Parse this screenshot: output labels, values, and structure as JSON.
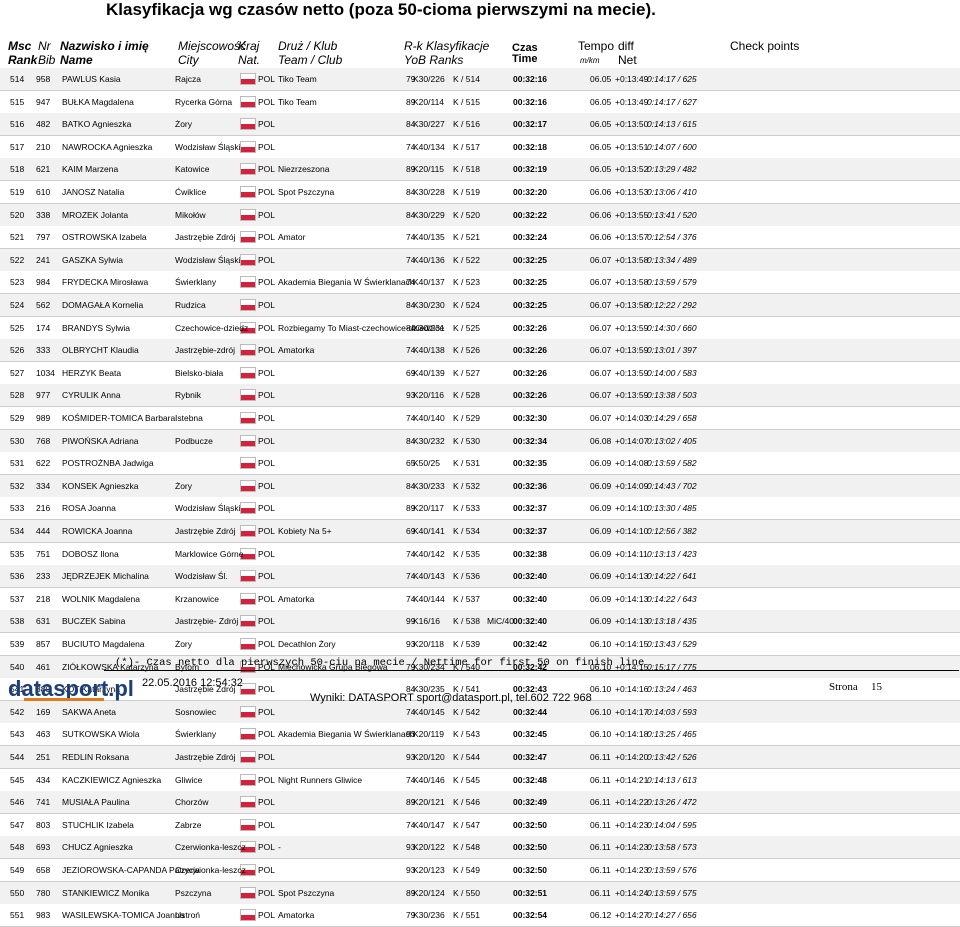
{
  "header": {
    "title": "Klasyfikacja wg czasów netto (poza 50-cioma pierwszymi na mecie).",
    "cols1": [
      "Msc",
      "Nr",
      "Nazwisko i imię",
      "Miejscowość",
      "Kraj",
      "Druż / Klub",
      "R-k Klasyfikacje",
      "Czas",
      "Tempo",
      "diff",
      "Check points"
    ],
    "cols2": [
      "Rank",
      "Bib",
      "Name",
      "City",
      "Nat.",
      "Team / Club",
      "YoB Ranks",
      "Time",
      "m/km",
      "Net"
    ]
  },
  "table": {
    "rows": [
      {
        "msc": "514",
        "nr": "958",
        "name": "PAWLUS Kasia",
        "city": "Rajcza",
        "nat": "POL",
        "club": "Tiko Team",
        "yob": "79",
        "cat": "K30/226",
        "rank": "K / 514",
        "time": "00:32:16",
        "pace": "06.05",
        "diff": "+0:13:49",
        "net": "0:14:17 / 625"
      },
      {
        "msc": "515",
        "nr": "947",
        "name": "BUŁKA Magdalena",
        "city": "Rycerka Górna",
        "nat": "POL",
        "club": "Tiko Team",
        "yob": "89",
        "cat": "K20/114",
        "rank": "K / 515",
        "time": "00:32:16",
        "pace": "06.05",
        "diff": "+0:13:49",
        "net": "0:14:17 / 627"
      },
      {
        "msc": "516",
        "nr": "482",
        "name": "BATKO Agnieszka",
        "city": "Żory",
        "nat": "POL",
        "yob": "84",
        "cat": "K30/227",
        "rank": "K / 516",
        "time": "00:32:17",
        "pace": "06.05",
        "diff": "+0:13:50",
        "net": "0:14:13 / 615"
      },
      {
        "msc": "517",
        "nr": "210",
        "name": "NAWROCKA Agnieszka",
        "city": "Wodzisław Śląski",
        "nat": "POL",
        "yob": "74",
        "cat": "K40/134",
        "rank": "K / 517",
        "time": "00:32:18",
        "pace": "06.05",
        "diff": "+0:13:51",
        "net": "0:14:07 / 600"
      },
      {
        "msc": "518",
        "nr": "621",
        "name": "KAIM Marzena",
        "city": "Katowice",
        "nat": "POL",
        "club": "Niezrzeszona",
        "yob": "89",
        "cat": "K20/115",
        "rank": "K / 518",
        "time": "00:32:19",
        "pace": "06.05",
        "diff": "+0:13:52",
        "net": "0:13:29 / 482"
      },
      {
        "msc": "519",
        "nr": "610",
        "name": "JANOSZ Natalia",
        "city": "Ćwiklice",
        "nat": "POL",
        "club": "Spot Pszczyna",
        "yob": "84",
        "cat": "K30/228",
        "rank": "K / 519",
        "time": "00:32:20",
        "pace": "06.06",
        "diff": "+0:13:53",
        "net": "0:13:06 / 410"
      },
      {
        "msc": "520",
        "nr": "338",
        "name": "MROZEK Jolanta",
        "city": "Mikołów",
        "nat": "POL",
        "yob": "84",
        "cat": "K30/229",
        "rank": "K / 520",
        "time": "00:32:22",
        "pace": "06.06",
        "diff": "+0:13:55",
        "net": "0:13:41 / 520"
      },
      {
        "msc": "521",
        "nr": "797",
        "name": "OSTROWSKA Izabela",
        "city": "Jastrzębie Zdrój",
        "nat": "POL",
        "club": "Amator",
        "yob": "74",
        "cat": "K40/135",
        "rank": "K / 521",
        "time": "00:32:24",
        "pace": "06.06",
        "diff": "+0:13:57",
        "net": "0:12:54 / 376"
      },
      {
        "msc": "522",
        "nr": "241",
        "name": "GASZKA Sylwia",
        "city": "Wodzisław Śląski",
        "nat": "POL",
        "yob": "74",
        "cat": "K40/136",
        "rank": "K / 522",
        "time": "00:32:25",
        "pace": "06.07",
        "diff": "+0:13:58",
        "net": "0:13:34 / 489"
      },
      {
        "msc": "523",
        "nr": "984",
        "name": "FRYDECKA Mirosława",
        "city": "Świerklany",
        "nat": "POL",
        "club": "Akademia Biegania W Świerklanach",
        "yob": "74",
        "cat": "K40/137",
        "rank": "K / 523",
        "time": "00:32:25",
        "pace": "06.07",
        "diff": "+0:13:58",
        "net": "0:13:59 / 579"
      },
      {
        "msc": "524",
        "nr": "562",
        "name": "DOMAGAŁA Kornelia",
        "city": "Rudzica",
        "nat": "POL",
        "yob": "84",
        "cat": "K30/230",
        "rank": "K / 524",
        "time": "00:32:25",
        "pace": "06.07",
        "diff": "+0:13:58",
        "net": "0:12:22 / 292"
      },
      {
        "msc": "525",
        "nr": "174",
        "name": "BRANDYS Sylwia",
        "city": "Czechowice-dziedz",
        "nat": "POL",
        "club": "Rozbiegamy To Miast-czechowice-dziedzice",
        "yob": "84",
        "cat": "K30/231",
        "rank": "K / 525",
        "time": "00:32:26",
        "pace": "06.07",
        "diff": "+0:13:59",
        "net": "0:14:30 / 660"
      },
      {
        "msc": "526",
        "nr": "333",
        "name": "OLBRYCHT Klaudia",
        "city": "Jastrzębie-zdrój",
        "nat": "POL",
        "club": "Amatorka",
        "yob": "74",
        "cat": "K40/138",
        "rank": "K / 526",
        "time": "00:32:26",
        "pace": "06.07",
        "diff": "+0:13:59",
        "net": "0:13:01 / 397"
      },
      {
        "msc": "527",
        "nr": "1034",
        "name": "HERZYK Beata",
        "city": "Bielsko-biała",
        "nat": "POL",
        "yob": "69",
        "cat": "K40/139",
        "rank": "K / 527",
        "time": "00:32:26",
        "pace": "06.07",
        "diff": "+0:13:59",
        "net": "0:14:00 / 583"
      },
      {
        "msc": "528",
        "nr": "977",
        "name": "CYRULIK Anna",
        "city": "Rybnik",
        "nat": "POL",
        "yob": "93",
        "cat": "K20/116",
        "rank": "K / 528",
        "time": "00:32:26",
        "pace": "06.07",
        "diff": "+0:13:59",
        "net": "0:13:38 / 503"
      },
      {
        "msc": "529",
        "nr": "989",
        "name": "KOŚMIDER-TOMICA Barbara",
        "city": "Istebna",
        "nat": "POL",
        "yob": "74",
        "cat": "K40/140",
        "rank": "K / 529",
        "time": "00:32:30",
        "pace": "06.07",
        "diff": "+0:14:03",
        "net": "0:14:29 / 658"
      },
      {
        "msc": "530",
        "nr": "768",
        "name": "PIWOŃSKA Adriana",
        "city": "Podbucze",
        "nat": "POL",
        "yob": "84",
        "cat": "K30/232",
        "rank": "K / 530",
        "time": "00:32:34",
        "pace": "06.08",
        "diff": "+0:14:07",
        "net": "0:13:02 / 405"
      },
      {
        "msc": "531",
        "nr": "622",
        "name": "POSTROŻNBA Jadwiga",
        "nat": "POL",
        "yob": "65",
        "cat": "K50/25",
        "rank": "K / 531",
        "time": "00:32:35",
        "pace": "06.09",
        "diff": "+0:14:08",
        "net": "0:13:59 / 582"
      },
      {
        "msc": "532",
        "nr": "334",
        "name": "KONSEK Agnieszka",
        "city": "Żory",
        "nat": "POL",
        "yob": "84",
        "cat": "K30/233",
        "rank": "K / 532",
        "time": "00:32:36",
        "pace": "06.09",
        "diff": "+0:14:09",
        "net": "0:14:43 / 702"
      },
      {
        "msc": "533",
        "nr": "216",
        "name": "ROSA Joanna",
        "city": "Wodzisław Śląski",
        "nat": "POL",
        "yob": "89",
        "cat": "K20/117",
        "rank": "K / 533",
        "time": "00:32:37",
        "pace": "06.09",
        "diff": "+0:14:10",
        "net": "0:13:30 / 485"
      },
      {
        "msc": "534",
        "nr": "444",
        "name": "ROWICKA Joanna",
        "city": "Jastrzębie Zdrój",
        "nat": "POL",
        "club": "Kobiety Na 5+",
        "yob": "69",
        "cat": "K40/141",
        "rank": "K / 534",
        "time": "00:32:37",
        "pace": "06.09",
        "diff": "+0:14:10",
        "net": "0:12:56 / 382"
      },
      {
        "msc": "535",
        "nr": "751",
        "name": "DOBOSZ Ilona",
        "city": "Marklowice Górne",
        "nat": "POL",
        "yob": "74",
        "cat": "K40/142",
        "rank": "K / 535",
        "time": "00:32:38",
        "pace": "06.09",
        "diff": "+0:14:11",
        "net": "0:13:13 / 423"
      },
      {
        "msc": "536",
        "nr": "233",
        "name": "JĘDRZEJEK Michalina",
        "city": "Wodzisław Śl.",
        "nat": "POL",
        "yob": "74",
        "cat": "K40/143",
        "rank": "K / 536",
        "time": "00:32:40",
        "pace": "06.09",
        "diff": "+0:14:13",
        "net": "0:14:22 / 641"
      },
      {
        "msc": "537",
        "nr": "218",
        "name": "WOLNIK Magdalena",
        "city": "Krzanowice",
        "nat": "POL",
        "club": "Amatorka",
        "yob": "74",
        "cat": "K40/144",
        "rank": "K / 537",
        "time": "00:32:40",
        "pace": "06.09",
        "diff": "+0:14:13",
        "net": "0:14:22 / 643"
      },
      {
        "msc": "538",
        "nr": "631",
        "name": "BUCZEK Sabina",
        "city": "Jastrzębie- Zdrój",
        "nat": "POL",
        "yob": "99",
        "cat": "K16/16",
        "rank": "K / 538",
        "note": "MiC/40",
        "time": "00:32:40",
        "pace": "06.09",
        "diff": "+0:14:13",
        "net": "0:13:18 / 435"
      },
      {
        "msc": "539",
        "nr": "857",
        "name": "BUCIUTO Magdalena",
        "city": "Żory",
        "nat": "POL",
        "club": "Decathlon Żory",
        "yob": "93",
        "cat": "K20/118",
        "rank": "K / 539",
        "time": "00:32:42",
        "pace": "06.10",
        "diff": "+0:14:15",
        "net": "0:13:43 / 529"
      },
      {
        "msc": "540",
        "nr": "461",
        "name": "ZIÓŁKOWSKA Katarzyna",
        "city": "Bytom",
        "nat": "POL",
        "club": "Miechowicka Grupa Biegowa",
        "yob": "79",
        "cat": "K30/234",
        "rank": "K / 540",
        "time": "00:32:42",
        "pace": "06.10",
        "diff": "+0:14:15",
        "net": "0:15:17 / 775"
      },
      {
        "msc": "541",
        "nr": "380",
        "name": "KOT Katarzyna",
        "city": "Jastrzębie Zdrój",
        "nat": "POL",
        "yob": "84",
        "cat": "K30/235",
        "rank": "K / 541",
        "time": "00:32:43",
        "pace": "06.10",
        "diff": "+0:14:16",
        "net": "0:13:24 / 463"
      },
      {
        "msc": "542",
        "nr": "169",
        "name": "SAKWA Aneta",
        "city": "Sosnowiec",
        "nat": "POL",
        "yob": "74",
        "cat": "K40/145",
        "rank": "K / 542",
        "time": "00:32:44",
        "pace": "06.10",
        "diff": "+0:14:17",
        "net": "0:14:03 / 593"
      },
      {
        "msc": "543",
        "nr": "463",
        "name": "SUTKOWSKA Wiola",
        "city": "Świerklany",
        "nat": "POL",
        "club": "Akademia Biegania W Świerklanach",
        "yob": "93",
        "cat": "K20/119",
        "rank": "K / 543",
        "time": "00:32:45",
        "pace": "06.10",
        "diff": "+0:14:18",
        "net": "0:13:25 / 465"
      },
      {
        "msc": "544",
        "nr": "251",
        "name": "REDLIN Roksana",
        "city": "Jastrzębie Zdrój",
        "nat": "POL",
        "yob": "93",
        "cat": "K20/120",
        "rank": "K / 544",
        "time": "00:32:47",
        "pace": "06.11",
        "diff": "+0:14:20",
        "net": "0:13:42 / 526"
      },
      {
        "msc": "545",
        "nr": "434",
        "name": "KACZKIEWICZ Agnieszka",
        "city": "Gliwice",
        "nat": "POL",
        "club": "Night Runners Gliwice",
        "yob": "74",
        "cat": "K40/146",
        "rank": "K / 545",
        "time": "00:32:48",
        "pace": "06.11",
        "diff": "+0:14:21",
        "net": "0:14:13 / 613"
      },
      {
        "msc": "546",
        "nr": "741",
        "name": "MUSIAŁA Paulina",
        "city": "Chorzów",
        "nat": "POL",
        "yob": "89",
        "cat": "K20/121",
        "rank": "K / 546",
        "time": "00:32:49",
        "pace": "06.11",
        "diff": "+0:14:22",
        "net": "0:13:26 / 472"
      },
      {
        "msc": "547",
        "nr": "803",
        "name": "STUCHLIK Izabela",
        "city": "Zabrze",
        "nat": "POL",
        "yob": "74",
        "cat": "K40/147",
        "rank": "K / 547",
        "time": "00:32:50",
        "pace": "06.11",
        "diff": "+0:14:23",
        "net": "0:14:04 / 595"
      },
      {
        "msc": "548",
        "nr": "693",
        "name": "CHUCZ Agnieszka",
        "city": "Czerwionka-leszcz",
        "nat": "POL",
        "club": "-",
        "yob": "93",
        "cat": "K20/122",
        "rank": "K / 548",
        "time": "00:32:50",
        "pace": "06.11",
        "diff": "+0:14:23",
        "net": "0:13:58 / 573"
      },
      {
        "msc": "549",
        "nr": "658",
        "name": "JEZIOROWSKA-CAPANDA Patrycja",
        "city": "Czerwionka-leszcz",
        "nat": "POL",
        "yob": "93",
        "cat": "K20/123",
        "rank": "K / 549",
        "time": "00:32:50",
        "pace": "06.11",
        "diff": "+0:14:23",
        "net": "0:13:59 / 576"
      },
      {
        "msc": "550",
        "nr": "780",
        "name": "STANKIEWICZ Monika",
        "city": "Pszczyna",
        "nat": "POL",
        "club": "Spot Pszczyna",
        "yob": "89",
        "cat": "K20/124",
        "rank": "K / 550",
        "time": "00:32:51",
        "pace": "06.11",
        "diff": "+0:14:24",
        "net": "0:13:59 / 575"
      },
      {
        "msc": "551",
        "nr": "983",
        "name": "WASILEWSKA-TOMICA Joanna",
        "city": "Ustroń",
        "nat": "POL",
        "club": "Amatorka",
        "yob": "79",
        "cat": "K30/236",
        "rank": "K / 551",
        "time": "00:32:54",
        "pace": "06.12",
        "diff": "+0:14:27",
        "net": "0:14:27 / 656"
      }
    ]
  },
  "footer": {
    "note": "(*)- Czas netto dla pierwszych 50-ciu na mecie / Nettime for first 50 on finish line",
    "logo": "datasport.pl",
    "date": "22.05.2016 12:54:32",
    "contact": "Wyniki: DATASPORT sport@datasport.pl, tel.602 722 968",
    "page_label": "Strona",
    "page": "15"
  }
}
